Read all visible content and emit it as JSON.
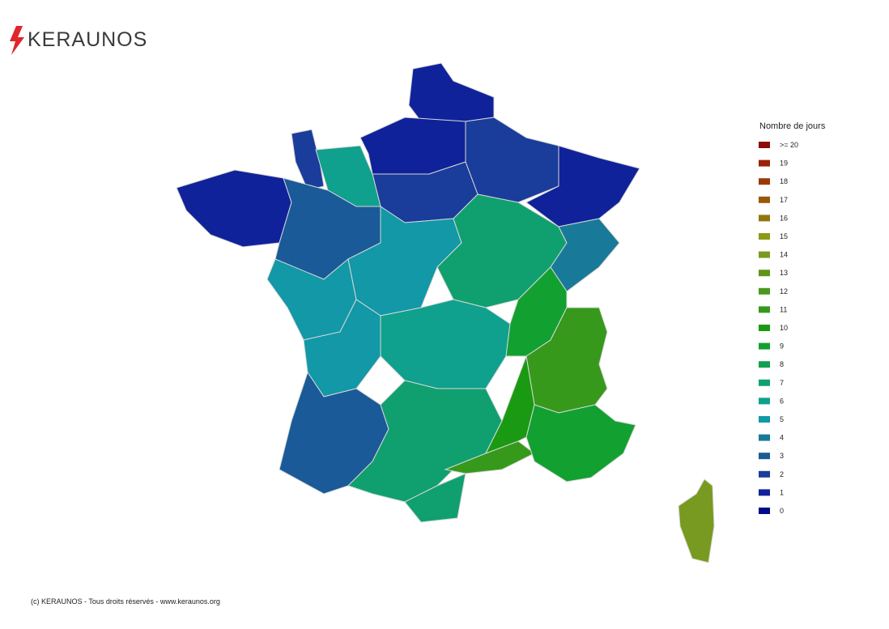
{
  "logo": "KERAUNOS",
  "map": {
    "values": [
      1,
      1,
      2,
      1,
      2,
      2,
      6,
      1,
      3,
      5,
      5,
      7,
      4,
      6,
      9,
      11,
      5,
      3,
      7,
      11,
      9,
      10,
      7,
      14
    ]
  },
  "legend": {
    "title": "Nombre de jours",
    "items": [
      {
        "label": ">= 20",
        "color": "#8b0a0a"
      },
      {
        "label": "19",
        "color": "#9a2208"
      },
      {
        "label": "18",
        "color": "#9c3a06"
      },
      {
        "label": "17",
        "color": "#985808"
      },
      {
        "label": "16",
        "color": "#8f780a"
      },
      {
        "label": "15",
        "color": "#8a9a14"
      },
      {
        "label": "14",
        "color": "#789a20"
      },
      {
        "label": "13",
        "color": "#5e9418"
      },
      {
        "label": "12",
        "color": "#4a9820"
      },
      {
        "label": "11",
        "color": "#36991c"
      },
      {
        "label": "10",
        "color": "#1a9a12"
      },
      {
        "label": "9",
        "color": "#12a030"
      },
      {
        "label": "8",
        "color": "#10a050"
      },
      {
        "label": "7",
        "color": "#10a070"
      },
      {
        "label": "6",
        "color": "#10a08e"
      },
      {
        "label": "5",
        "color": "#1298a6"
      },
      {
        "label": "4",
        "color": "#187a98"
      },
      {
        "label": "3",
        "color": "#1a5a98"
      },
      {
        "label": "2",
        "color": "#1a3c9a"
      },
      {
        "label": "1",
        "color": "#10229a"
      },
      {
        "label": "0",
        "color": "#000a8a"
      }
    ]
  },
  "footer": "(c) KERAUNOS - Tous droits réservés - www.keraunos.org"
}
